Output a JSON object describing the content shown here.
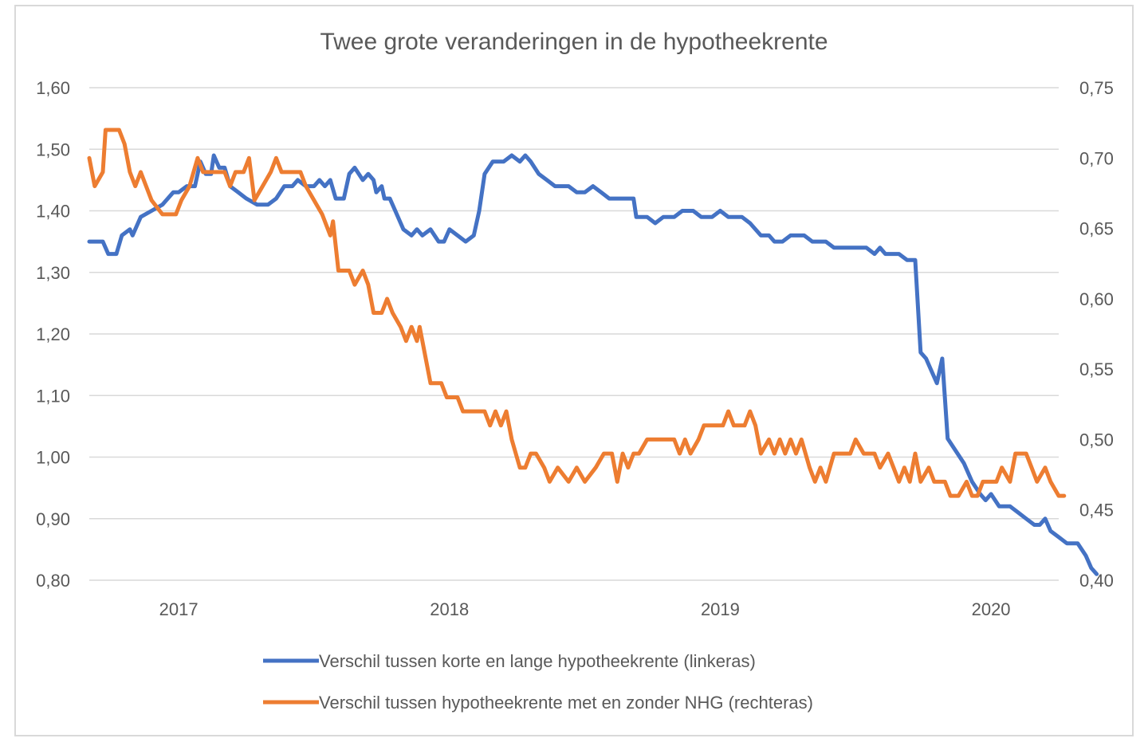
{
  "chart_data": {
    "type": "line",
    "title": "Twee grote veranderingen in de hypotheekrente",
    "x_tick_labels": [
      "2017",
      "2018",
      "2019",
      "2020"
    ],
    "x_range": [
      2016.67,
      2020.25
    ],
    "y_left": {
      "range": [
        0.8,
        1.6
      ],
      "tick_labels": [
        "0,80",
        "0,90",
        "1,00",
        "1,10",
        "1,20",
        "1,30",
        "1,40",
        "1,50",
        "1,60"
      ]
    },
    "y_right": {
      "range": [
        0.4,
        0.75
      ],
      "tick_labels": [
        "0,40",
        "0,45",
        "0,50",
        "0,55",
        "0,60",
        "0,65",
        "0,70",
        "0,75"
      ]
    },
    "grid": "horizontal",
    "legend_position": "bottom",
    "series": [
      {
        "name": "Verschil tussen korte en lange hypotheekrente (linkeras)",
        "axis": "left",
        "color": "#4472C4",
        "points": [
          [
            2016.67,
            1.35
          ],
          [
            2016.72,
            1.35
          ],
          [
            2016.74,
            1.33
          ],
          [
            2016.77,
            1.33
          ],
          [
            2016.79,
            1.36
          ],
          [
            2016.82,
            1.37
          ],
          [
            2016.83,
            1.36
          ],
          [
            2016.86,
            1.39
          ],
          [
            2016.9,
            1.4
          ],
          [
            2016.94,
            1.41
          ],
          [
            2016.98,
            1.43
          ],
          [
            2017.0,
            1.43
          ],
          [
            2017.03,
            1.44
          ],
          [
            2017.06,
            1.44
          ],
          [
            2017.08,
            1.48
          ],
          [
            2017.1,
            1.46
          ],
          [
            2017.12,
            1.46
          ],
          [
            2017.13,
            1.49
          ],
          [
            2017.15,
            1.47
          ],
          [
            2017.17,
            1.47
          ],
          [
            2017.19,
            1.44
          ],
          [
            2017.22,
            1.43
          ],
          [
            2017.25,
            1.42
          ],
          [
            2017.29,
            1.41
          ],
          [
            2017.33,
            1.41
          ],
          [
            2017.36,
            1.42
          ],
          [
            2017.39,
            1.44
          ],
          [
            2017.42,
            1.44
          ],
          [
            2017.44,
            1.45
          ],
          [
            2017.47,
            1.44
          ],
          [
            2017.5,
            1.44
          ],
          [
            2017.52,
            1.45
          ],
          [
            2017.54,
            1.44
          ],
          [
            2017.56,
            1.45
          ],
          [
            2017.58,
            1.42
          ],
          [
            2017.61,
            1.42
          ],
          [
            2017.63,
            1.46
          ],
          [
            2017.65,
            1.47
          ],
          [
            2017.68,
            1.45
          ],
          [
            2017.7,
            1.46
          ],
          [
            2017.72,
            1.45
          ],
          [
            2017.73,
            1.43
          ],
          [
            2017.75,
            1.44
          ],
          [
            2017.76,
            1.42
          ],
          [
            2017.78,
            1.42
          ],
          [
            2017.8,
            1.4
          ],
          [
            2017.83,
            1.37
          ],
          [
            2017.86,
            1.36
          ],
          [
            2017.88,
            1.37
          ],
          [
            2017.9,
            1.36
          ],
          [
            2017.93,
            1.37
          ],
          [
            2017.96,
            1.35
          ],
          [
            2017.98,
            1.35
          ],
          [
            2018.0,
            1.37
          ],
          [
            2018.03,
            1.36
          ],
          [
            2018.06,
            1.35
          ],
          [
            2018.09,
            1.36
          ],
          [
            2018.11,
            1.4
          ],
          [
            2018.13,
            1.46
          ],
          [
            2018.16,
            1.48
          ],
          [
            2018.2,
            1.48
          ],
          [
            2018.23,
            1.49
          ],
          [
            2018.26,
            1.48
          ],
          [
            2018.28,
            1.49
          ],
          [
            2018.3,
            1.48
          ],
          [
            2018.33,
            1.46
          ],
          [
            2018.36,
            1.45
          ],
          [
            2018.39,
            1.44
          ],
          [
            2018.44,
            1.44
          ],
          [
            2018.47,
            1.43
          ],
          [
            2018.5,
            1.43
          ],
          [
            2018.53,
            1.44
          ],
          [
            2018.56,
            1.43
          ],
          [
            2018.59,
            1.42
          ],
          [
            2018.68,
            1.42
          ],
          [
            2018.69,
            1.39
          ],
          [
            2018.73,
            1.39
          ],
          [
            2018.76,
            1.38
          ],
          [
            2018.79,
            1.39
          ],
          [
            2018.83,
            1.39
          ],
          [
            2018.86,
            1.4
          ],
          [
            2018.9,
            1.4
          ],
          [
            2018.93,
            1.39
          ],
          [
            2018.97,
            1.39
          ],
          [
            2019.0,
            1.4
          ],
          [
            2019.03,
            1.39
          ],
          [
            2019.08,
            1.39
          ],
          [
            2019.11,
            1.38
          ],
          [
            2019.15,
            1.36
          ],
          [
            2019.18,
            1.36
          ],
          [
            2019.2,
            1.35
          ],
          [
            2019.23,
            1.35
          ],
          [
            2019.26,
            1.36
          ],
          [
            2019.31,
            1.36
          ],
          [
            2019.34,
            1.35
          ],
          [
            2019.39,
            1.35
          ],
          [
            2019.42,
            1.34
          ],
          [
            2019.5,
            1.34
          ],
          [
            2019.54,
            1.34
          ],
          [
            2019.57,
            1.33
          ],
          [
            2019.59,
            1.34
          ],
          [
            2019.61,
            1.33
          ],
          [
            2019.66,
            1.33
          ],
          [
            2019.69,
            1.32
          ],
          [
            2019.72,
            1.32
          ],
          [
            2019.74,
            1.17
          ],
          [
            2019.76,
            1.16
          ],
          [
            2019.78,
            1.14
          ],
          [
            2019.8,
            1.12
          ],
          [
            2019.82,
            1.16
          ],
          [
            2019.84,
            1.03
          ],
          [
            2019.87,
            1.01
          ],
          [
            2019.9,
            0.99
          ],
          [
            2019.93,
            0.96
          ],
          [
            2019.96,
            0.94
          ],
          [
            2019.98,
            0.93
          ],
          [
            2020.0,
            0.94
          ],
          [
            2020.03,
            0.92
          ],
          [
            2020.07,
            0.92
          ],
          [
            2020.1,
            0.91
          ],
          [
            2020.13,
            0.9
          ],
          [
            2020.16,
            0.89
          ],
          [
            2020.18,
            0.89
          ],
          [
            2020.2,
            0.9
          ],
          [
            2020.22,
            0.88
          ],
          [
            2020.25,
            0.87
          ],
          [
            2020.28,
            0.86
          ],
          [
            2020.32,
            0.86
          ],
          [
            2020.35,
            0.84
          ],
          [
            2020.37,
            0.82
          ],
          [
            2020.39,
            0.81
          ]
        ]
      },
      {
        "name": "Verschil tussen hypotheekrente met en zonder NHG (rechteras)",
        "axis": "right",
        "color": "#ED7D31",
        "points": [
          [
            2016.67,
            0.7
          ],
          [
            2016.69,
            0.68
          ],
          [
            2016.72,
            0.69
          ],
          [
            2016.73,
            0.72
          ],
          [
            2016.78,
            0.72
          ],
          [
            2016.8,
            0.71
          ],
          [
            2016.82,
            0.69
          ],
          [
            2016.84,
            0.68
          ],
          [
            2016.86,
            0.69
          ],
          [
            2016.88,
            0.68
          ],
          [
            2016.9,
            0.67
          ],
          [
            2016.94,
            0.66
          ],
          [
            2016.97,
            0.66
          ],
          [
            2016.99,
            0.66
          ],
          [
            2017.01,
            0.67
          ],
          [
            2017.04,
            0.68
          ],
          [
            2017.07,
            0.7
          ],
          [
            2017.09,
            0.69
          ],
          [
            2017.14,
            0.69
          ],
          [
            2017.17,
            0.69
          ],
          [
            2017.19,
            0.68
          ],
          [
            2017.21,
            0.69
          ],
          [
            2017.24,
            0.69
          ],
          [
            2017.26,
            0.7
          ],
          [
            2017.28,
            0.67
          ],
          [
            2017.31,
            0.68
          ],
          [
            2017.34,
            0.69
          ],
          [
            2017.36,
            0.7
          ],
          [
            2017.38,
            0.69
          ],
          [
            2017.45,
            0.69
          ],
          [
            2017.47,
            0.68
          ],
          [
            2017.5,
            0.67
          ],
          [
            2017.53,
            0.66
          ],
          [
            2017.56,
            0.645
          ],
          [
            2017.57,
            0.655
          ],
          [
            2017.59,
            0.62
          ],
          [
            2017.63,
            0.62
          ],
          [
            2017.65,
            0.61
          ],
          [
            2017.68,
            0.62
          ],
          [
            2017.7,
            0.61
          ],
          [
            2017.72,
            0.59
          ],
          [
            2017.75,
            0.59
          ],
          [
            2017.77,
            0.6
          ],
          [
            2017.79,
            0.59
          ],
          [
            2017.82,
            0.58
          ],
          [
            2017.84,
            0.57
          ],
          [
            2017.86,
            0.58
          ],
          [
            2017.88,
            0.57
          ],
          [
            2017.89,
            0.58
          ],
          [
            2017.91,
            0.56
          ],
          [
            2017.93,
            0.54
          ],
          [
            2017.97,
            0.54
          ],
          [
            2017.99,
            0.53
          ],
          [
            2018.03,
            0.53
          ],
          [
            2018.05,
            0.52
          ],
          [
            2018.13,
            0.52
          ],
          [
            2018.15,
            0.51
          ],
          [
            2018.17,
            0.52
          ],
          [
            2018.19,
            0.51
          ],
          [
            2018.21,
            0.52
          ],
          [
            2018.23,
            0.5
          ],
          [
            2018.26,
            0.48
          ],
          [
            2018.28,
            0.48
          ],
          [
            2018.3,
            0.49
          ],
          [
            2018.32,
            0.49
          ],
          [
            2018.35,
            0.48
          ],
          [
            2018.37,
            0.47
          ],
          [
            2018.4,
            0.48
          ],
          [
            2018.44,
            0.47
          ],
          [
            2018.47,
            0.48
          ],
          [
            2018.5,
            0.47
          ],
          [
            2018.54,
            0.48
          ],
          [
            2018.57,
            0.49
          ],
          [
            2018.6,
            0.49
          ],
          [
            2018.62,
            0.47
          ],
          [
            2018.64,
            0.49
          ],
          [
            2018.66,
            0.48
          ],
          [
            2018.68,
            0.49
          ],
          [
            2018.7,
            0.49
          ],
          [
            2018.73,
            0.5
          ],
          [
            2018.83,
            0.5
          ],
          [
            2018.85,
            0.49
          ],
          [
            2018.87,
            0.5
          ],
          [
            2018.89,
            0.49
          ],
          [
            2018.92,
            0.5
          ],
          [
            2018.94,
            0.51
          ],
          [
            2018.98,
            0.51
          ],
          [
            2019.01,
            0.51
          ],
          [
            2019.03,
            0.52
          ],
          [
            2019.05,
            0.51
          ],
          [
            2019.09,
            0.51
          ],
          [
            2019.11,
            0.52
          ],
          [
            2019.13,
            0.51
          ],
          [
            2019.15,
            0.49
          ],
          [
            2019.18,
            0.5
          ],
          [
            2019.2,
            0.49
          ],
          [
            2019.22,
            0.5
          ],
          [
            2019.24,
            0.49
          ],
          [
            2019.26,
            0.5
          ],
          [
            2019.28,
            0.49
          ],
          [
            2019.3,
            0.5
          ],
          [
            2019.33,
            0.48
          ],
          [
            2019.35,
            0.47
          ],
          [
            2019.37,
            0.48
          ],
          [
            2019.39,
            0.47
          ],
          [
            2019.42,
            0.49
          ],
          [
            2019.48,
            0.49
          ],
          [
            2019.5,
            0.5
          ],
          [
            2019.53,
            0.49
          ],
          [
            2019.57,
            0.49
          ],
          [
            2019.59,
            0.48
          ],
          [
            2019.62,
            0.49
          ],
          [
            2019.64,
            0.48
          ],
          [
            2019.66,
            0.47
          ],
          [
            2019.68,
            0.48
          ],
          [
            2019.7,
            0.47
          ],
          [
            2019.72,
            0.49
          ],
          [
            2019.74,
            0.47
          ],
          [
            2019.77,
            0.48
          ],
          [
            2019.79,
            0.47
          ],
          [
            2019.83,
            0.47
          ],
          [
            2019.85,
            0.46
          ],
          [
            2019.88,
            0.46
          ],
          [
            2019.91,
            0.47
          ],
          [
            2019.93,
            0.46
          ],
          [
            2019.95,
            0.46
          ],
          [
            2019.97,
            0.47
          ],
          [
            2020.02,
            0.47
          ],
          [
            2020.04,
            0.48
          ],
          [
            2020.07,
            0.47
          ],
          [
            2020.09,
            0.49
          ],
          [
            2020.13,
            0.49
          ],
          [
            2020.15,
            0.48
          ],
          [
            2020.17,
            0.47
          ],
          [
            2020.2,
            0.48
          ],
          [
            2020.22,
            0.47
          ],
          [
            2020.25,
            0.46
          ],
          [
            2020.27,
            0.46
          ]
        ]
      }
    ]
  }
}
